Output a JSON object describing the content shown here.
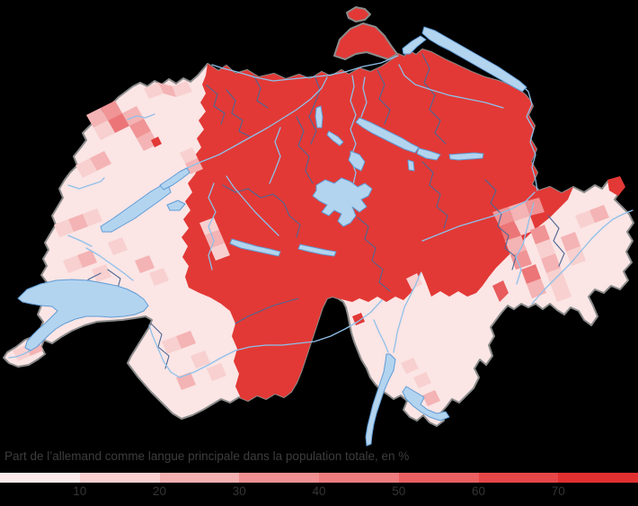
{
  "page": {
    "background": "#000000"
  },
  "caption": "Part de l’allemand comme langue principale dans la population totale, en %",
  "legend": {
    "caption_color": "#3d3d3d",
    "tick_color": "#343434",
    "tick_labels": [
      "10",
      "20",
      "30",
      "40",
      "50",
      "60",
      "70"
    ],
    "segment_colors": [
      "#fce9e9",
      "#f9cfd0",
      "#f5b1b2",
      "#f09092",
      "#ee7c7e",
      "#ea5f61",
      "#e64648",
      "#e23031"
    ]
  },
  "map": {
    "subject": "Switzerland municipalities choropleth",
    "colors": {
      "land_light": "#fbe5e5",
      "patch_10_20": "#f8d0d0",
      "patch_20_30": "#f4b3b4",
      "patch_30_40": "#f09496",
      "patch_40_50": "#ec7577",
      "patch_50_60": "#e85a5c",
      "german_majority_red": "#e23936",
      "lake_fill": "#b3d4ef",
      "lake_stroke": "#5f9cd6",
      "river": "#8fc0e9",
      "canton_border": "#4b6795",
      "country_border": "#8b8b8b"
    }
  }
}
